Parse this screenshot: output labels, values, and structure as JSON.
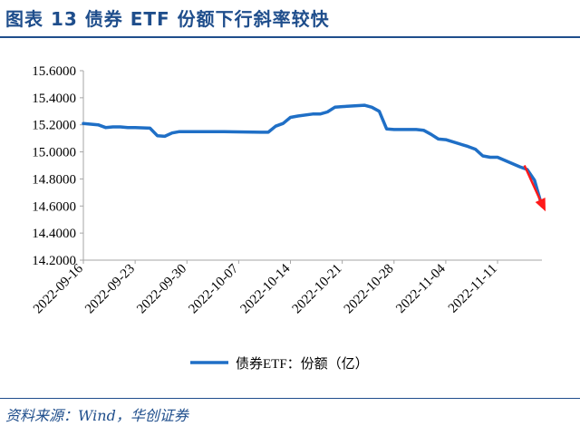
{
  "page": {
    "title": "图表 13 债券 ETF 份额下行斜率较快",
    "source": "资料来源：Wind，华创证券",
    "accent_color": "#1f4e8c"
  },
  "chart_data": {
    "type": "line",
    "title": "",
    "xlabel": "",
    "ylabel": "",
    "ylim": [
      14.2,
      15.6
    ],
    "y_ticks": [
      "15.6000",
      "15.4000",
      "15.2000",
      "15.0000",
      "14.8000",
      "14.6000",
      "14.4000",
      "14.2000"
    ],
    "x_ticks": [
      "2022-09-16",
      "2022-09-23",
      "2022-09-30",
      "2022-10-07",
      "2022-10-14",
      "2022-10-21",
      "2022-10-28",
      "2022-11-04",
      "2022-11-11"
    ],
    "legend": {
      "label": "债券ETF：份额（亿）",
      "position": "bottom"
    },
    "grid": false,
    "annotation": "red-down-arrow",
    "series": [
      {
        "name": "债券ETF：份额（亿）",
        "color": "#1f6fc6",
        "x": [
          "2022-09-16",
          "2022-09-17",
          "2022-09-18",
          "2022-09-19",
          "2022-09-20",
          "2022-09-21",
          "2022-09-22",
          "2022-09-23",
          "2022-09-25",
          "2022-09-26",
          "2022-09-27",
          "2022-09-28",
          "2022-09-29",
          "2022-09-30",
          "2022-10-05",
          "2022-10-10",
          "2022-10-11",
          "2022-10-12",
          "2022-10-13",
          "2022-10-14",
          "2022-10-15",
          "2022-10-17",
          "2022-10-18",
          "2022-10-19",
          "2022-10-20",
          "2022-10-21",
          "2022-10-24",
          "2022-10-25",
          "2022-10-26",
          "2022-10-27",
          "2022-10-28",
          "2022-10-31",
          "2022-11-01",
          "2022-11-02",
          "2022-11-03",
          "2022-11-04",
          "2022-11-07",
          "2022-11-08",
          "2022-11-09",
          "2022-11-10",
          "2022-11-11",
          "2022-11-14",
          "2022-11-15",
          "2022-11-16",
          "2022-11-17"
        ],
        "values": [
          15.21,
          15.205,
          15.2,
          15.18,
          15.185,
          15.185,
          15.18,
          15.18,
          15.175,
          15.12,
          15.115,
          15.14,
          15.15,
          15.15,
          15.15,
          15.145,
          15.145,
          15.19,
          15.21,
          15.255,
          15.265,
          15.28,
          15.28,
          15.295,
          15.33,
          15.335,
          15.345,
          15.33,
          15.3,
          15.17,
          15.165,
          15.165,
          15.16,
          15.13,
          15.095,
          15.09,
          15.04,
          15.02,
          14.97,
          14.96,
          14.96,
          14.89,
          14.87,
          14.79,
          14.6
        ]
      }
    ]
  }
}
